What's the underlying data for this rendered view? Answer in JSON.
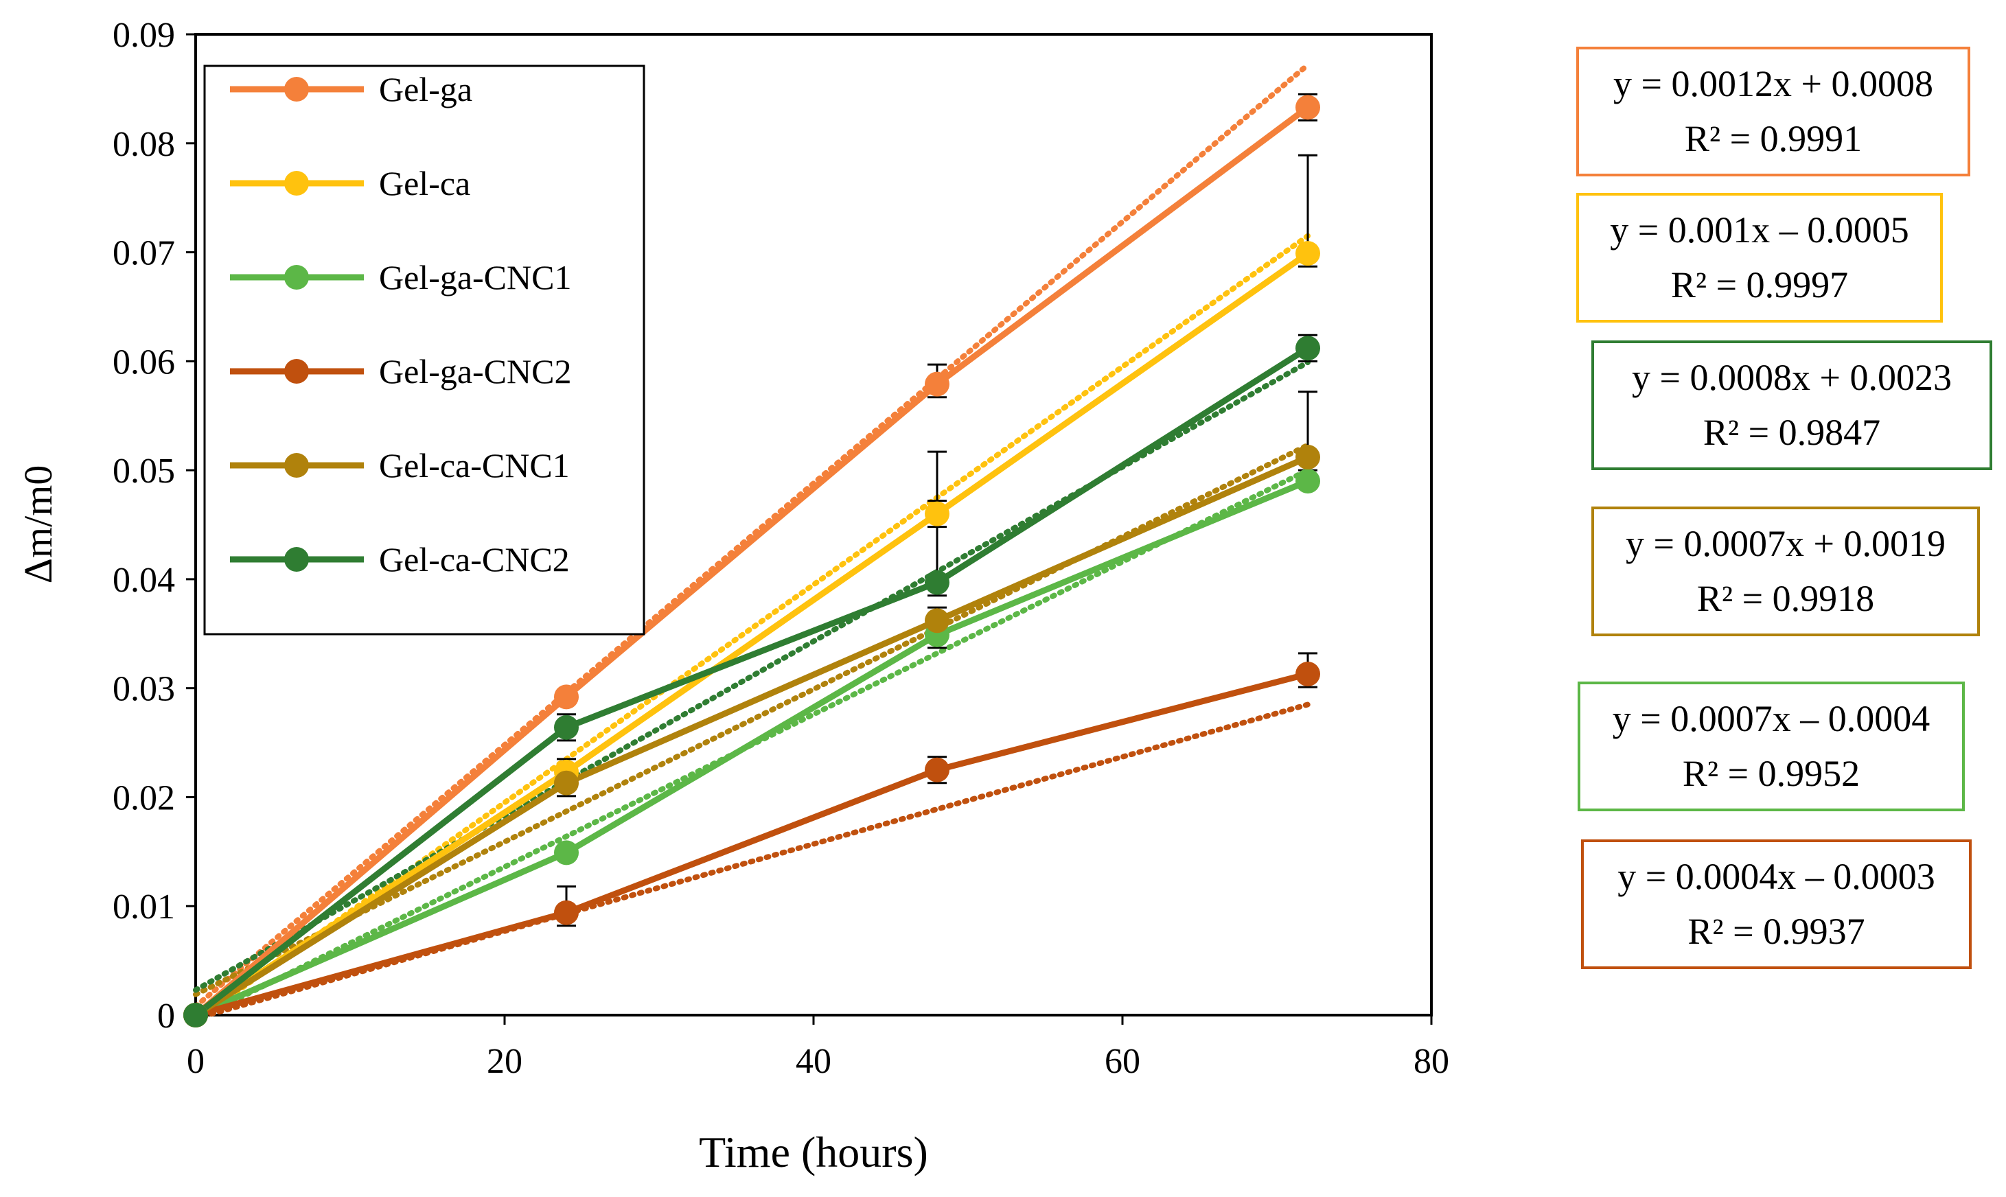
{
  "chart_data": {
    "type": "line",
    "xlabel": "Time (hours)",
    "ylabel": "Δm/m0",
    "xlim": [
      0,
      80
    ],
    "ylim": [
      0,
      0.09
    ],
    "x_ticks": [
      0,
      20,
      40,
      60,
      80
    ],
    "x_tick_labels": [
      "0",
      "20",
      "40",
      "60",
      "80"
    ],
    "y_ticks": [
      0,
      0.01,
      0.02,
      0.03,
      0.04,
      0.05,
      0.06,
      0.07,
      0.08,
      0.09
    ],
    "y_tick_labels": [
      "0",
      "0.01",
      "0.02",
      "0.03",
      "0.04",
      "0.05",
      "0.06",
      "0.07",
      "0.08",
      "0.09"
    ],
    "grid": false,
    "legend_position": "top-left",
    "trendline_style": "dotted linear",
    "series": [
      {
        "name": "Gel-ga",
        "color": "#F4803A",
        "x": [
          0,
          24,
          48,
          72
        ],
        "y": [
          0,
          0.0292,
          0.0579,
          0.0833
        ],
        "error_up": [
          0,
          0,
          0.0018,
          0.0012
        ],
        "error_down": [
          0,
          0,
          0.0012,
          0.0012
        ],
        "trendline": {
          "slope": 0.0012,
          "intercept": 0.0008
        },
        "equation": "y = 0.0012x + 0.0008",
        "r_squared": "R² = 0.9991"
      },
      {
        "name": "Gel-ca",
        "color": "#FFC20E",
        "x": [
          0,
          24,
          48,
          72
        ],
        "y": [
          0,
          0.0223,
          0.046,
          0.0699
        ],
        "error_up": [
          0,
          0.0012,
          0.0012,
          0.009
        ],
        "error_down": [
          0,
          0.0012,
          0.0012,
          0.0012
        ],
        "trendline": {
          "slope": 0.001,
          "intercept": -0.0005
        },
        "equation": "y = 0.001x – 0.0005",
        "r_squared": "R² = 0.9997"
      },
      {
        "name": "Gel-ga-CNC1",
        "color": "#5CB747",
        "x": [
          0,
          24,
          48,
          72
        ],
        "y": [
          0,
          0.0149,
          0.0349,
          0.049
        ],
        "error_up": [
          0,
          0,
          0.0012,
          0
        ],
        "error_down": [
          0,
          0,
          0.0012,
          0
        ],
        "trendline": {
          "slope": 0.0007,
          "intercept": -0.0004
        },
        "equation": "y = 0.0007x – 0.0004",
        "r_squared": "R² = 0.9952"
      },
      {
        "name": "Gel-ga-CNC2",
        "color": "#C0500E",
        "x": [
          0,
          24,
          48,
          72
        ],
        "y": [
          0,
          0.0094,
          0.0225,
          0.0313
        ],
        "error_up": [
          0,
          0.0024,
          0.0012,
          0.0019
        ],
        "error_down": [
          0,
          0.0012,
          0.0012,
          0.0012
        ],
        "trendline": {
          "slope": 0.0004,
          "intercept": -0.0003
        },
        "equation": "y = 0.0004x – 0.0003",
        "r_squared": "R² = 0.9937"
      },
      {
        "name": "Gel-ca-CNC1",
        "color": "#B0820C",
        "x": [
          0,
          24,
          48,
          72
        ],
        "y": [
          0,
          0.0213,
          0.0362,
          0.0512
        ],
        "error_up": [
          0,
          0.0012,
          0.0012,
          0.006
        ],
        "error_down": [
          0,
          0.0012,
          0.0012,
          0.0012
        ],
        "trendline": {
          "slope": 0.0007,
          "intercept": 0.0019
        },
        "equation": "y = 0.0007x + 0.0019",
        "r_squared": "R² = 0.9918"
      },
      {
        "name": "Gel-ca-CNC2",
        "color": "#2F7D32",
        "x": [
          0,
          24,
          48,
          72
        ],
        "y": [
          0,
          0.0264,
          0.0397,
          0.0612
        ],
        "error_up": [
          0,
          0.0012,
          0.012,
          0.0012
        ],
        "error_down": [
          0,
          0.0012,
          0.0012,
          0.0012
        ],
        "trendline": {
          "slope": 0.0008,
          "intercept": 0.0023
        },
        "equation": "y = 0.0008x + 0.0023",
        "r_squared": "R² = 0.9847"
      }
    ],
    "equation_box_order": [
      "Gel-ga",
      "Gel-ca",
      "Gel-ca-CNC2",
      "Gel-ca-CNC1",
      "Gel-ga-CNC1",
      "Gel-ga-CNC2"
    ]
  }
}
